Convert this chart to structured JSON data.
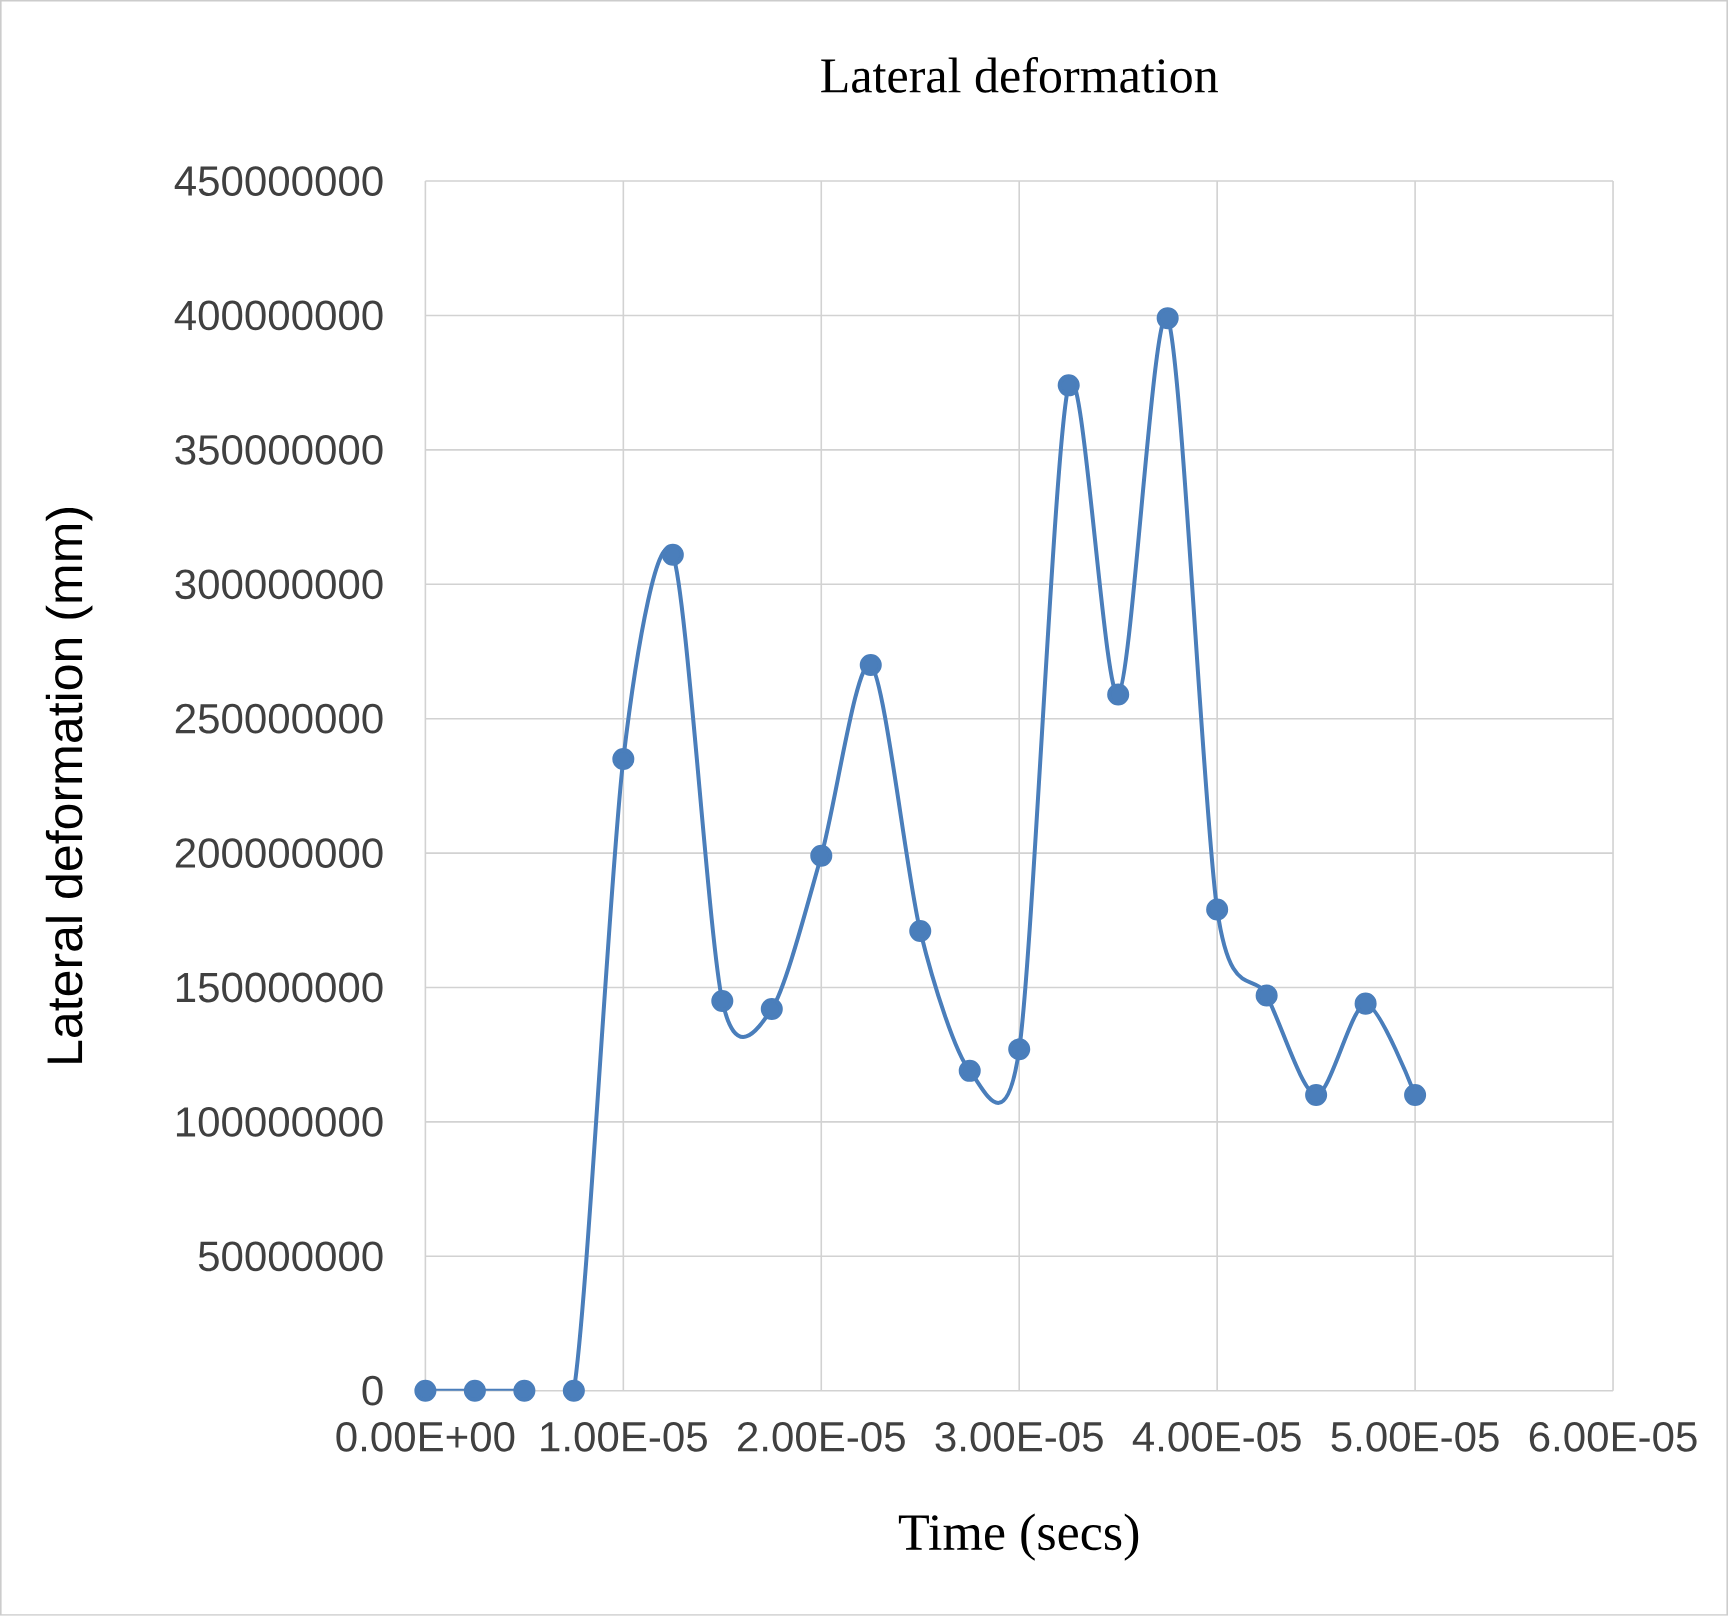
{
  "chart_data": {
    "type": "line",
    "title": "Lateral deformation",
    "xlabel": "Time (secs)",
    "ylabel": "Lateral deformation (mm)",
    "x": [
      0,
      2.5e-06,
      5e-06,
      7.5e-06,
      1e-05,
      1.25e-05,
      1.5e-05,
      1.75e-05,
      2e-05,
      2.25e-05,
      2.5e-05,
      2.75e-05,
      3e-05,
      3.25e-05,
      3.5e-05,
      3.75e-05,
      4e-05,
      4.25e-05,
      4.5e-05,
      4.75e-05,
      5e-05
    ],
    "series": [
      {
        "color": "#4a7ebb",
        "values": [
          0,
          0,
          0,
          0,
          235000000,
          311000000,
          145000000,
          142000000,
          199000000,
          270000000,
          171000000,
          119000000,
          127000000,
          374000000,
          259000000,
          399000000,
          179000000,
          147000000,
          110000000,
          144000000,
          110000000
        ]
      }
    ],
    "xlim": [
      0,
      6e-05
    ],
    "ylim": [
      0,
      450000000
    ],
    "xticks": [
      {
        "value": 0,
        "label": "0.00E+00"
      },
      {
        "value": 1e-05,
        "label": "1.00E-05"
      },
      {
        "value": 2e-05,
        "label": "2.00E-05"
      },
      {
        "value": 3e-05,
        "label": "3.00E-05"
      },
      {
        "value": 4e-05,
        "label": "4.00E-05"
      },
      {
        "value": 5e-05,
        "label": "5.00E-05"
      },
      {
        "value": 6e-05,
        "label": "6.00E-05"
      }
    ],
    "yticks": [
      0,
      50000000,
      100000000,
      150000000,
      200000000,
      250000000,
      300000000,
      350000000,
      400000000,
      450000000
    ],
    "grid": true,
    "marker": "circle",
    "line_style": "solid"
  }
}
